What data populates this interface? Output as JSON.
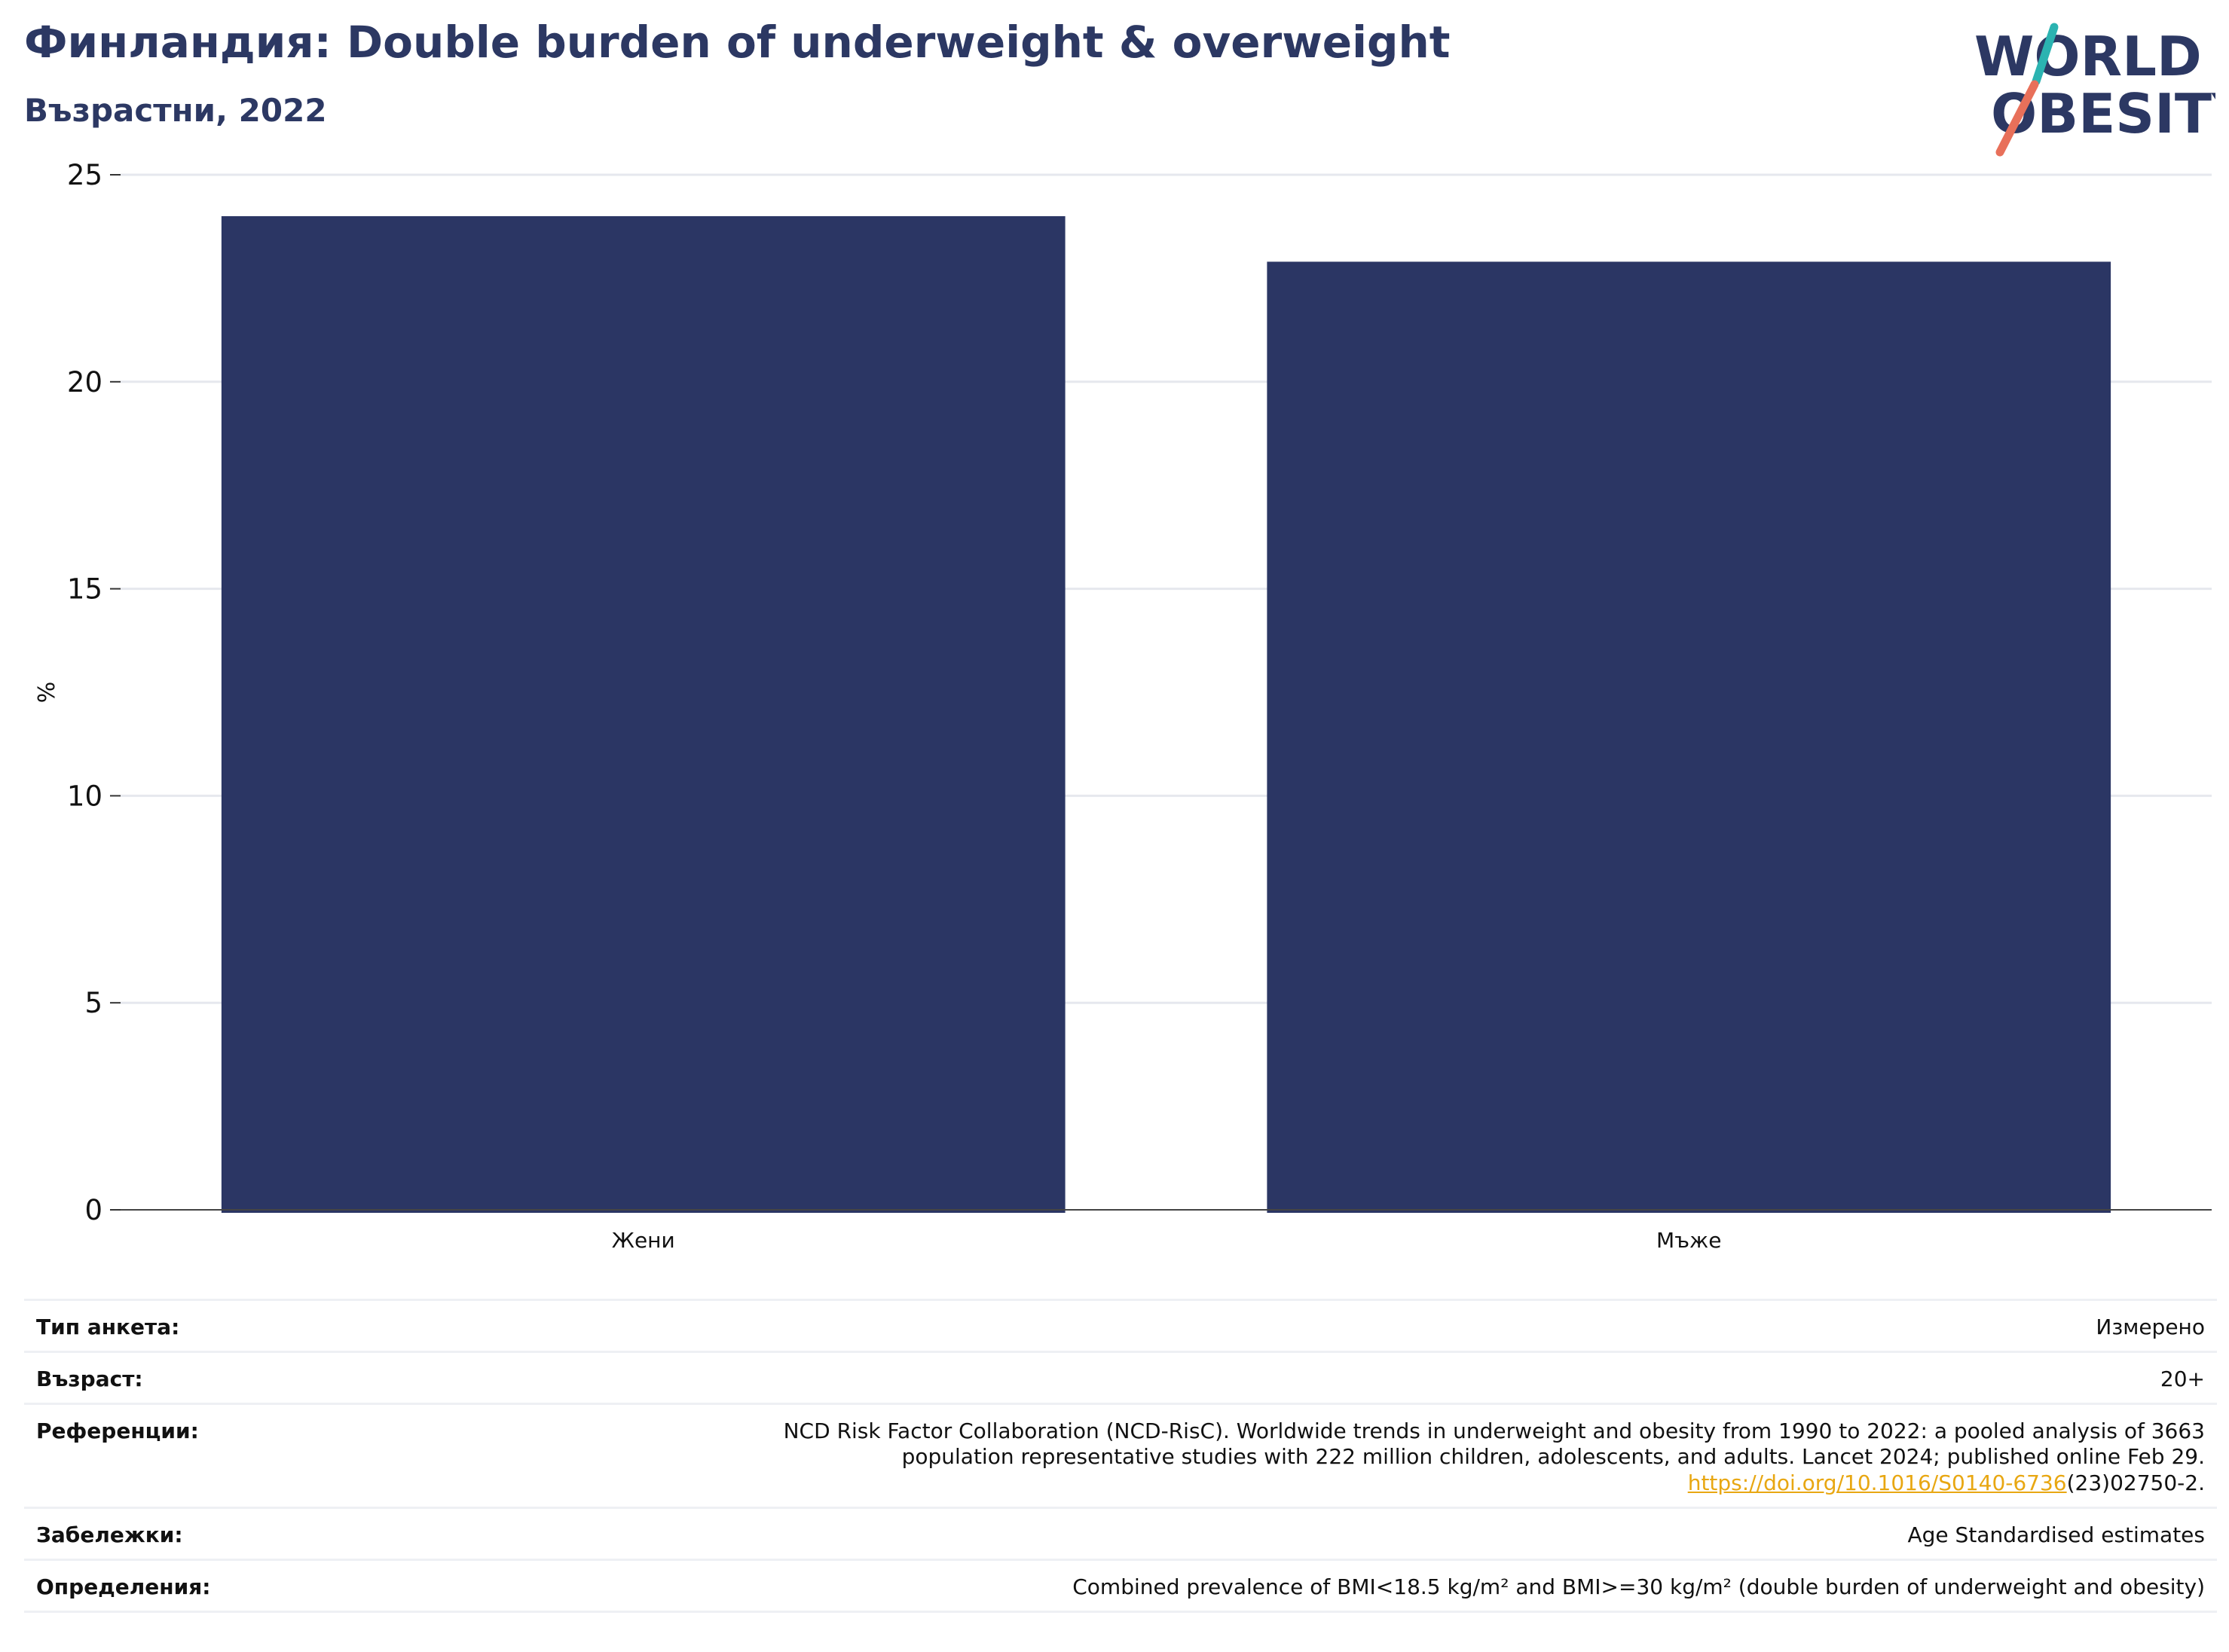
{
  "header": {
    "title": "Финландия: Double burden of underweight & overweight",
    "subtitle": "Възрастни, 2022"
  },
  "logo": {
    "line1": "WORLD",
    "line2": "OBESITY",
    "icon": "world-obesity-logo"
  },
  "colors": {
    "bar": "#2b3664",
    "title": "#2c3863",
    "grid": "#e6e8ee",
    "link": "#e8a712",
    "logo_teal": "#2bb3b1",
    "logo_coral": "#e8705a"
  },
  "chart_data": {
    "type": "bar",
    "categories": [
      "Жени",
      "Мъже"
    ],
    "values": [
      24.0,
      22.9
    ],
    "ylabel": "%",
    "ylim": [
      0,
      25
    ],
    "yticks": [
      0,
      5,
      10,
      15,
      20,
      25
    ],
    "grid": true,
    "legend": "none"
  },
  "meta": {
    "survey_label": "Тип анкета:",
    "survey_value": "Измерено",
    "age_label": "Възраст:",
    "age_value": "20+",
    "ref_label": "Референции:",
    "ref_line1": "NCD Risk Factor Collaboration (NCD-RisC). Worldwide trends in underweight and obesity from 1990 to 2022: a pooled analysis of 3663",
    "ref_line2": "population representative studies with 222 million children, adolescents, and adults. Lancet 2024; published online Feb 29.",
    "ref_link": "https://doi.org/10.1016/S0140-6736",
    "ref_tail": "(23)02750-2.",
    "notes_label": "Забележки:",
    "notes_value": "Age Standardised estimates",
    "def_label": "Определения:",
    "def_value": "Combined prevalence of BMI<18.5 kg/m² and BMI>=30 kg/m² (double burden of underweight and obesity)"
  }
}
